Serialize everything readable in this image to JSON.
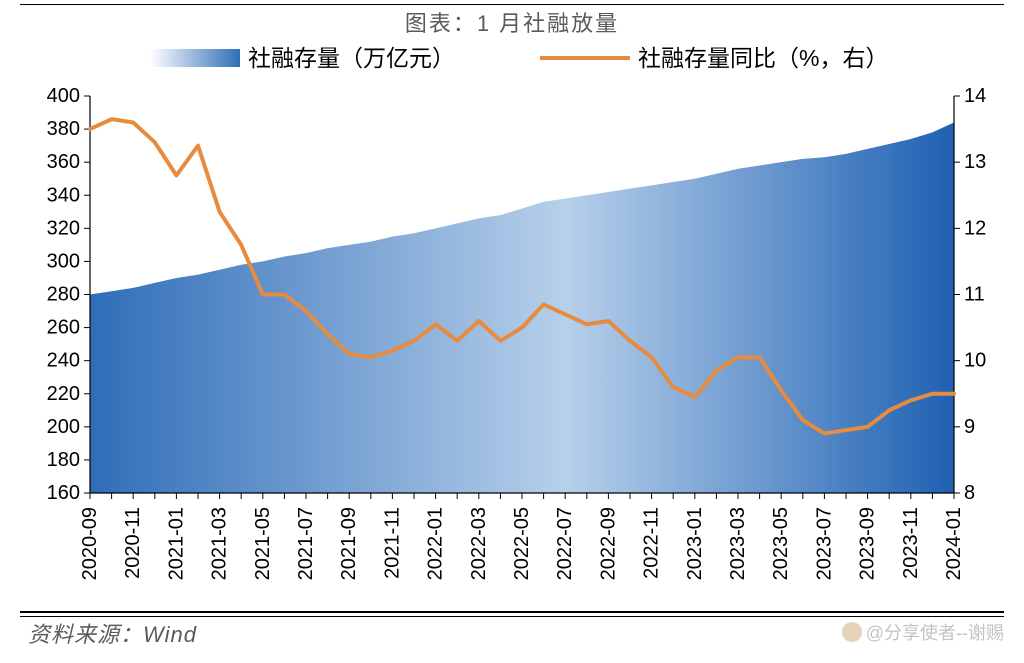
{
  "title": "图表：1 月社融放量",
  "source": "资料来源：Wind",
  "watermark": "@分享使者--谢赐",
  "chart": {
    "type": "combo-area-line",
    "legend": {
      "bar_label": "社融存量（万亿元）",
      "line_label": "社融存量同比（%，右）"
    },
    "colors": {
      "area_gradient_start": "#2f6db8",
      "area_gradient_mid": "#b7d0ea",
      "area_gradient_end": "#1f61b3",
      "line": "#e78b3e",
      "line_width": 4,
      "axis": "#000000",
      "grid": "none",
      "background": "#ffffff"
    },
    "left_axis": {
      "min": 160,
      "max": 400,
      "step": 20,
      "ticks": [
        160,
        180,
        200,
        220,
        240,
        260,
        280,
        300,
        320,
        340,
        360,
        380,
        400
      ]
    },
    "right_axis": {
      "min": 8,
      "max": 14,
      "step": 1,
      "ticks": [
        8,
        9,
        10,
        11,
        12,
        13,
        14
      ]
    },
    "x_labels": [
      "2020-09",
      "2020-11",
      "2021-01",
      "2021-03",
      "2021-05",
      "2021-07",
      "2021-09",
      "2021-11",
      "2022-01",
      "2022-03",
      "2022-05",
      "2022-07",
      "2022-09",
      "2022-11",
      "2023-01",
      "2023-03",
      "2023-05",
      "2023-07",
      "2023-09",
      "2023-11",
      "2024-01"
    ],
    "x_categories": [
      "2020-09",
      "2020-10",
      "2020-11",
      "2020-12",
      "2021-01",
      "2021-02",
      "2021-03",
      "2021-04",
      "2021-05",
      "2021-06",
      "2021-07",
      "2021-08",
      "2021-09",
      "2021-10",
      "2021-11",
      "2021-12",
      "2022-01",
      "2022-02",
      "2022-03",
      "2022-04",
      "2022-05",
      "2022-06",
      "2022-07",
      "2022-08",
      "2022-09",
      "2022-10",
      "2022-11",
      "2022-12",
      "2023-01",
      "2023-02",
      "2023-03",
      "2023-04",
      "2023-05",
      "2023-06",
      "2023-07",
      "2023-08",
      "2023-09",
      "2023-10",
      "2023-11",
      "2023-12",
      "2024-01"
    ],
    "area_values": [
      280,
      282,
      284,
      287,
      290,
      292,
      295,
      298,
      300,
      303,
      305,
      308,
      310,
      312,
      315,
      317,
      320,
      323,
      326,
      328,
      332,
      336,
      338,
      340,
      342,
      344,
      346,
      348,
      350,
      353,
      356,
      358,
      360,
      362,
      363,
      365,
      368,
      371,
      374,
      378,
      384
    ],
    "line_values": [
      13.5,
      13.65,
      13.6,
      13.3,
      12.8,
      13.25,
      12.25,
      11.75,
      11.0,
      11.0,
      10.75,
      10.4,
      10.1,
      10.05,
      10.15,
      10.3,
      10.55,
      10.3,
      10.6,
      10.3,
      10.5,
      10.85,
      10.7,
      10.55,
      10.6,
      10.3,
      10.05,
      9.6,
      9.45,
      9.85,
      10.05,
      10.05,
      9.55,
      9.1,
      8.9,
      8.95,
      9.0,
      9.25,
      9.4,
      9.5,
      9.5
    ]
  }
}
